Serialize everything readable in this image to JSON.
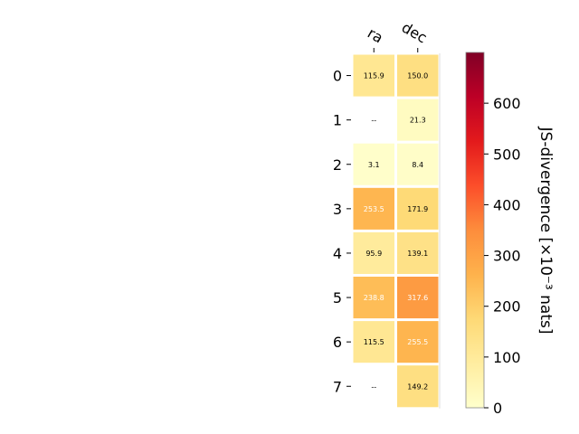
{
  "chart_data": {
    "type": "heatmap",
    "columns": [
      "ra",
      "dec"
    ],
    "rows": [
      "0",
      "1",
      "2",
      "3",
      "4",
      "5",
      "6",
      "7"
    ],
    "values": [
      [
        115.9,
        150.0
      ],
      [
        null,
        21.3
      ],
      [
        3.1,
        8.4
      ],
      [
        253.5,
        171.9
      ],
      [
        95.9,
        139.1
      ],
      [
        238.8,
        317.6
      ],
      [
        115.5,
        255.5
      ],
      [
        null,
        149.2
      ]
    ],
    "cell_labels": [
      [
        "115.9",
        "150.0"
      ],
      [
        "--",
        "21.3"
      ],
      [
        "3.1",
        "8.4"
      ],
      [
        "253.5",
        "171.9"
      ],
      [
        "95.9",
        "139.1"
      ],
      [
        "238.8",
        "317.6"
      ],
      [
        "115.5",
        "255.5"
      ],
      [
        "--",
        "149.2"
      ]
    ],
    "colorbar": {
      "label": "JS-divergence [×10⁻³ nats]",
      "range": [
        0,
        700
      ],
      "ticks": [
        "0",
        "100",
        "200",
        "300",
        "400",
        "500",
        "600"
      ],
      "tick_values": [
        0,
        100,
        200,
        300,
        400,
        500,
        600
      ],
      "colormap": "YlOrRd"
    },
    "colors": {
      "low": "#ffffcc",
      "high": "#800026",
      "missing": "#ffffff"
    }
  }
}
